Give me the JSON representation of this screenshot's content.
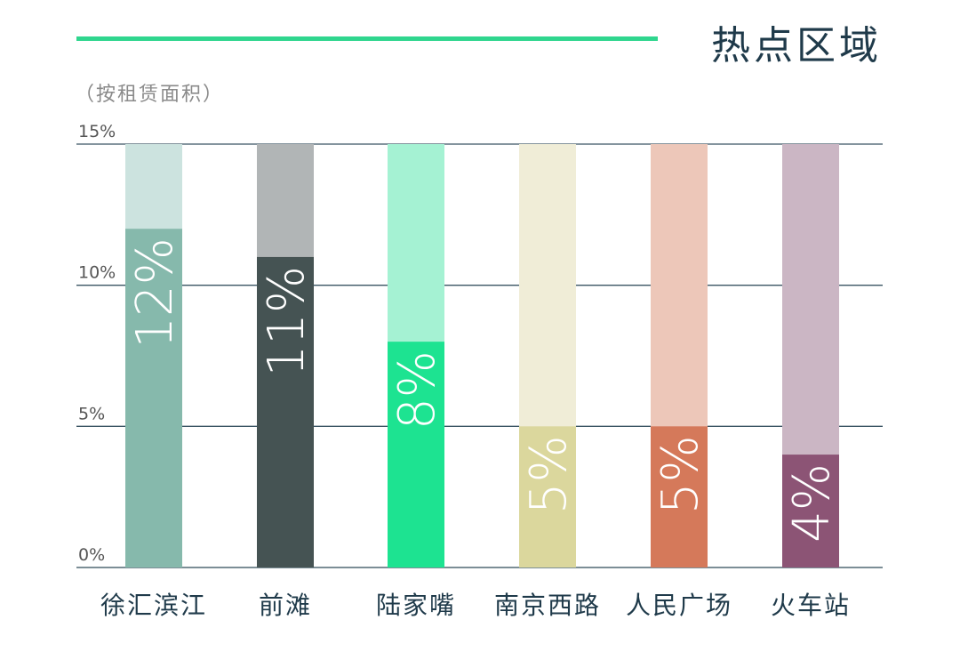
{
  "title": "热点区域",
  "subtitle": "（按租赁面积）",
  "accent_color": "#2fd68e",
  "chart_data": {
    "type": "bar",
    "title": "热点区域",
    "subtitle": "（按租赁面积）",
    "categories": [
      "徐汇滨江",
      "前滩",
      "陆家嘴",
      "南京西路",
      "人民广场",
      "火车站"
    ],
    "values": [
      12,
      11,
      8,
      5,
      5,
      4
    ],
    "value_labels": [
      "12%",
      "11%",
      "8%",
      "5%",
      "5%",
      "4%"
    ],
    "ylim": [
      0,
      15
    ],
    "yticks": [
      0,
      5,
      10,
      15
    ],
    "ytick_labels": [
      "0%",
      "5%",
      "10%",
      "15%"
    ],
    "grid": true,
    "colors": [
      {
        "bar": "#86b9ac",
        "track": "#cce3df"
      },
      {
        "bar": "#455353",
        "track": "#b1b5b6"
      },
      {
        "bar": "#1de391",
        "track": "#a5f2d3"
      },
      {
        "bar": "#dbd79d",
        "track": "#f0edd7"
      },
      {
        "bar": "#d5795a",
        "track": "#edc7b9"
      },
      {
        "bar": "#8c5475",
        "track": "#cbb6c4"
      }
    ]
  }
}
